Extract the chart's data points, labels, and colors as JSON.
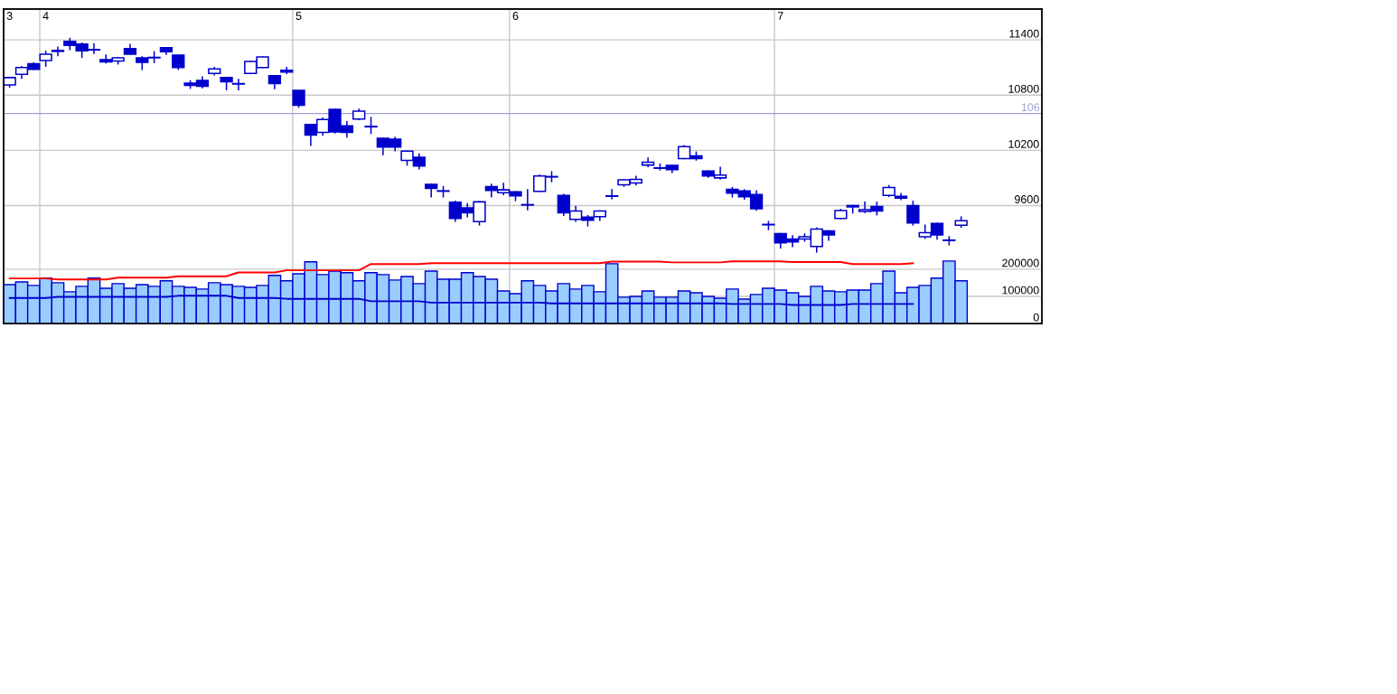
{
  "chart_data": {
    "type": "candlestick",
    "categories": [
      "3",
      null,
      null,
      "4",
      null,
      null,
      null,
      null,
      null,
      null,
      null,
      null,
      null,
      null,
      null,
      null,
      null,
      null,
      null,
      null,
      null,
      null,
      null,
      null,
      "5",
      null,
      null,
      null,
      null,
      null,
      null,
      null,
      null,
      null,
      null,
      null,
      null,
      null,
      null,
      null,
      null,
      null,
      "6",
      null,
      null,
      null,
      null,
      null,
      null,
      null,
      null,
      null,
      null,
      null,
      null,
      null,
      null,
      null,
      null,
      null,
      null,
      null,
      null,
      null,
      "7",
      null,
      null,
      null,
      null,
      null,
      null,
      null,
      null,
      null,
      null,
      null,
      null,
      null,
      null,
      null
    ],
    "color": "#0000cc",
    "ohlc": [
      [
        10910,
        10990,
        10890,
        10990
      ],
      [
        11025,
        11110,
        10985,
        11100
      ],
      [
        11140,
        11150,
        11080,
        11080
      ],
      [
        11175,
        11275,
        11115,
        11245
      ],
      [
        11285,
        11320,
        11230,
        11275
      ],
      [
        11385,
        11415,
        11295,
        11340
      ],
      [
        11355,
        11365,
        11210,
        11280
      ],
      [
        11295,
        11355,
        11255,
        11290
      ],
      [
        11185,
        11235,
        11150,
        11160
      ],
      [
        11170,
        11205,
        11140,
        11205
      ],
      [
        11305,
        11350,
        11245,
        11245
      ],
      [
        11205,
        11215,
        11080,
        11155
      ],
      [
        11210,
        11270,
        11155,
        11205
      ],
      [
        11315,
        11315,
        11245,
        11270
      ],
      [
        11235,
        11235,
        11080,
        11100
      ],
      [
        10930,
        10955,
        10875,
        10905
      ],
      [
        10960,
        10995,
        10880,
        10895
      ],
      [
        11035,
        11100,
        11020,
        11085
      ],
      [
        10990,
        10990,
        10860,
        10945
      ],
      [
        10925,
        10970,
        10860,
        10920
      ],
      [
        11035,
        11165,
        11035,
        11165
      ],
      [
        11100,
        11215,
        11100,
        11215
      ],
      [
        11010,
        11010,
        10870,
        10925
      ],
      [
        11070,
        11100,
        11035,
        11050
      ],
      [
        10850,
        10850,
        10670,
        10690
      ],
      [
        10480,
        10480,
        10255,
        10365
      ],
      [
        10395,
        10550,
        10365,
        10535
      ],
      [
        10645,
        10645,
        10390,
        10400
      ],
      [
        10465,
        10510,
        10345,
        10395
      ],
      [
        10540,
        10645,
        10535,
        10625
      ],
      [
        10460,
        10555,
        10385,
        10455
      ],
      [
        10330,
        10330,
        10155,
        10235
      ],
      [
        10320,
        10340,
        10195,
        10235
      ],
      [
        10090,
        10190,
        10040,
        10190
      ],
      [
        10125,
        10160,
        10000,
        10030
      ],
      [
        9830,
        9830,
        9695,
        9785
      ],
      [
        9760,
        9805,
        9695,
        9755
      ],
      [
        9635,
        9645,
        9430,
        9460
      ],
      [
        9575,
        9620,
        9480,
        9520
      ],
      [
        9425,
        9640,
        9390,
        9640
      ],
      [
        9805,
        9830,
        9695,
        9765
      ],
      [
        9740,
        9840,
        9720,
        9770
      ],
      [
        9750,
        9750,
        9655,
        9705
      ],
      [
        9610,
        9770,
        9555,
        9605
      ],
      [
        9755,
        9930,
        9755,
        9920
      ],
      [
        9915,
        9965,
        9860,
        9910
      ],
      [
        9710,
        9720,
        9495,
        9520
      ],
      [
        9450,
        9590,
        9430,
        9540
      ],
      [
        9475,
        9490,
        9380,
        9440
      ],
      [
        9480,
        9540,
        9440,
        9540
      ],
      [
        9705,
        9770,
        9675,
        9700
      ],
      [
        9825,
        9880,
        9810,
        9880
      ],
      [
        9845,
        9915,
        9825,
        9885
      ],
      [
        10040,
        10115,
        10025,
        10070
      ],
      [
        10010,
        10050,
        9990,
        10005
      ],
      [
        10035,
        10035,
        9960,
        9990
      ],
      [
        10110,
        10250,
        10110,
        10240
      ],
      [
        10140,
        10180,
        10095,
        10110
      ],
      [
        9975,
        9975,
        9910,
        9920
      ],
      [
        9900,
        10015,
        9890,
        9930
      ],
      [
        9775,
        9795,
        9695,
        9735
      ],
      [
        9760,
        9770,
        9670,
        9695
      ],
      [
        9720,
        9760,
        9550,
        9565
      ],
      [
        9395,
        9425,
        9340,
        9390
      ],
      [
        9295,
        9295,
        9140,
        9195
      ],
      [
        9235,
        9270,
        9155,
        9205
      ],
      [
        9235,
        9290,
        9215,
        9260
      ],
      [
        9155,
        9355,
        9095,
        9345
      ],
      [
        9325,
        9325,
        9225,
        9280
      ],
      [
        9460,
        9555,
        9460,
        9545
      ],
      [
        9600,
        9600,
        9520,
        9585
      ],
      [
        9535,
        9635,
        9525,
        9555
      ],
      [
        9590,
        9635,
        9500,
        9540
      ],
      [
        9710,
        9815,
        9700,
        9795
      ],
      [
        9700,
        9730,
        9665,
        9680
      ],
      [
        9600,
        9645,
        9390,
        9410
      ],
      [
        9260,
        9385,
        9245,
        9305
      ],
      [
        9405,
        9405,
        9235,
        9280
      ],
      [
        9225,
        9260,
        9175,
        9220
      ],
      [
        9385,
        9475,
        9365,
        9435
      ]
    ],
    "series": [
      {
        "type": "bar",
        "axis": "y2",
        "color": "#99ccff",
        "values": [
          143000,
          153000,
          140000,
          167000,
          150000,
          117000,
          137000,
          167000,
          130000,
          147000,
          130000,
          143000,
          137000,
          157000,
          137000,
          133000,
          127000,
          150000,
          143000,
          137000,
          133000,
          140000,
          177000,
          157000,
          183000,
          227000,
          180000,
          193000,
          187000,
          157000,
          187000,
          180000,
          160000,
          173000,
          147000,
          193000,
          163000,
          163000,
          187000,
          173000,
          163000,
          120000,
          110000,
          157000,
          140000,
          120000,
          147000,
          127000,
          140000,
          117000,
          220000,
          97000,
          100000,
          120000,
          97000,
          97000,
          120000,
          113000,
          100000,
          93000,
          127000,
          90000,
          107000,
          130000,
          123000,
          113000,
          100000,
          137000,
          120000,
          117000,
          123000,
          123000,
          147000,
          193000,
          113000,
          133000,
          140000,
          167000,
          230000,
          157000
        ]
      },
      {
        "type": "line",
        "axis": "y2",
        "color": "#ff0000",
        "values": [
          166000,
          166000,
          166000,
          166000,
          162000,
          162000,
          162000,
          162000,
          162000,
          169000,
          169000,
          169000,
          169000,
          169000,
          174000,
          174000,
          174000,
          174000,
          174000,
          188000,
          188000,
          188000,
          188000,
          196000,
          196000,
          196000,
          196000,
          196000,
          196000,
          196000,
          219000,
          219000,
          219000,
          219000,
          219000,
          222000,
          222000,
          222000,
          222000,
          222000,
          222000,
          222000,
          222000,
          222000,
          222000,
          222000,
          222000,
          222000,
          222000,
          222000,
          228000,
          228000,
          228000,
          228000,
          228000,
          225000,
          225000,
          225000,
          225000,
          225000,
          229000,
          229000,
          229000,
          229000,
          229000,
          226000,
          226000,
          226000,
          226000,
          226000,
          219000,
          219000,
          219000,
          219000,
          219000,
          222000,
          null,
          null,
          null,
          null
        ]
      },
      {
        "type": "line",
        "axis": "y2",
        "color": "#0000cc",
        "values": [
          94000,
          94000,
          94000,
          94000,
          98000,
          98000,
          98000,
          98000,
          98000,
          98000,
          98000,
          98000,
          98000,
          98000,
          102000,
          102000,
          102000,
          102000,
          102000,
          94000,
          94000,
          94000,
          94000,
          91000,
          91000,
          91000,
          91000,
          91000,
          91000,
          91000,
          82000,
          82000,
          82000,
          82000,
          82000,
          77000,
          77000,
          77000,
          77000,
          77000,
          77000,
          77000,
          77000,
          77000,
          77000,
          74000,
          74000,
          74000,
          74000,
          74000,
          74000,
          74000,
          74000,
          74000,
          74000,
          74000,
          74000,
          74000,
          74000,
          74000,
          72000,
          72000,
          72000,
          72000,
          72000,
          68000,
          68000,
          68000,
          68000,
          68000,
          72000,
          72000,
          72000,
          72000,
          72000,
          72000,
          null,
          null,
          null,
          null
        ]
      }
    ],
    "ylim": [
      8318,
      11735
    ],
    "yticks": [
      9600,
      10200,
      10800,
      11400
    ],
    "y2lim": [
      0,
      1158000
    ],
    "y2ticks": [
      0,
      100000,
      200000
    ],
    "grid": true,
    "ref_lines": [
      {
        "axis": "y",
        "value": 10600,
        "color": "#a0a0d4"
      }
    ],
    "annotations": [
      "106"
    ]
  }
}
